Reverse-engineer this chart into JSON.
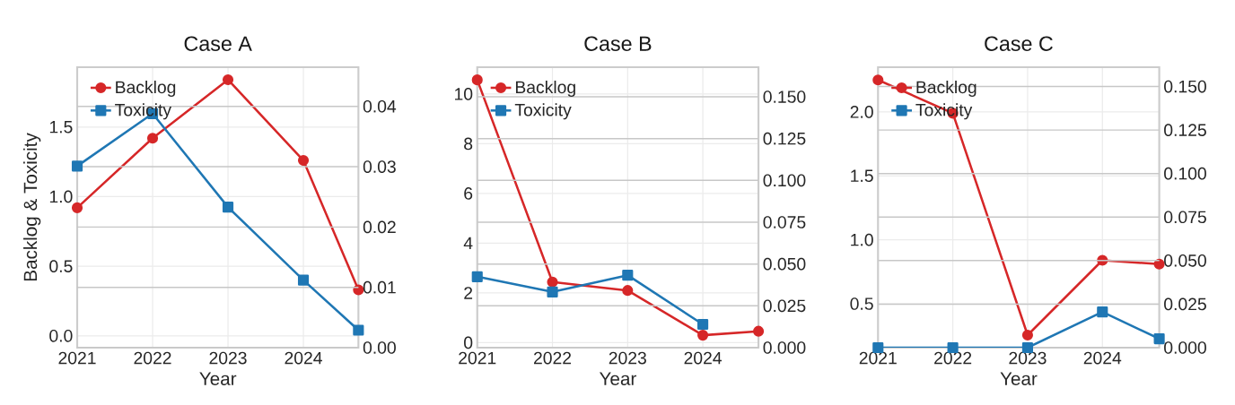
{
  "chart_data": [
    {
      "type": "line",
      "title": "Case A",
      "xlabel": "Year",
      "ylabel": "Backlog & Toxicity",
      "xlim": [
        2021,
        2024.73
      ],
      "xticks": [
        2021,
        2022,
        2023,
        2024
      ],
      "ylim": [
        -0.085,
        1.93
      ],
      "yticks": [
        {
          "value": 0,
          "label": "0.0"
        },
        0.5,
        {
          "value": 1,
          "label": "1.0"
        },
        1.5
      ],
      "y2lim": [
        0,
        0.0465
      ],
      "y2ticks": [
        {
          "value": 0,
          "label": "0.00"
        },
        0.01,
        0.02,
        0.03,
        0.04
      ],
      "grid": true,
      "legend": "top left",
      "series": [
        {
          "name": "Backlog",
          "color": "#d62728",
          "marker": "circle",
          "axis": "y",
          "x": [
            2021,
            2022,
            2023,
            2024,
            2024.73
          ],
          "values": [
            0.92,
            1.42,
            1.84,
            1.26,
            0.33
          ]
        },
        {
          "name": "Toxicity",
          "color": "#1f77b4",
          "marker": "square",
          "axis": "y2",
          "x": [
            2021,
            2022,
            2023,
            2024,
            2024.73
          ],
          "values": [
            0.0301,
            0.0388,
            0.0233,
            0.0112,
            0.0029
          ]
        }
      ]
    },
    {
      "type": "line",
      "title": "Case B",
      "xlabel": "Year",
      "xlim": [
        2021,
        2024.74
      ],
      "xticks": [
        2021,
        2022,
        2023,
        2024
      ],
      "ylim": [
        -0.2,
        11.08
      ],
      "yticks": [
        0,
        2,
        4,
        6,
        8,
        10
      ],
      "y2lim": [
        0,
        0.1677
      ],
      "y2ticks": [
        {
          "value": 0,
          "label": "0.000"
        },
        0.025,
        {
          "value": 0.05,
          "label": "0.050"
        },
        0.075,
        {
          "value": 0.1,
          "label": "0.100"
        },
        0.125,
        {
          "value": 0.15,
          "label": "0.150"
        }
      ],
      "grid": true,
      "legend": "top left",
      "series": [
        {
          "name": "Backlog",
          "color": "#d62728",
          "marker": "circle",
          "axis": "y",
          "x": [
            2021,
            2022,
            2023,
            2024,
            2024.74
          ],
          "values": [
            10.57,
            2.44,
            2.1,
            0.3,
            0.46
          ]
        },
        {
          "name": "Toxicity",
          "color": "#1f77b4",
          "marker": "square",
          "axis": "y2",
          "x": [
            2021,
            2022,
            2023,
            2024
          ],
          "values": [
            0.0424,
            0.0333,
            0.0433,
            0.0139
          ]
        }
      ]
    },
    {
      "type": "line",
      "title": "Case C",
      "xlabel": "Year",
      "xlim": [
        2021,
        2024.76
      ],
      "xticks": [
        2021,
        2022,
        2023,
        2024
      ],
      "ylim": [
        0.157,
        2.35
      ],
      "yticks": [
        0.5,
        {
          "value": 1,
          "label": "1.0"
        },
        1.5,
        {
          "value": 2,
          "label": "2.0"
        }
      ],
      "y2lim": [
        0,
        0.1611
      ],
      "y2ticks": [
        {
          "value": 0,
          "label": "0.000"
        },
        0.025,
        {
          "value": 0.05,
          "label": "0.050"
        },
        0.075,
        {
          "value": 0.1,
          "label": "0.100"
        },
        0.125,
        {
          "value": 0.15,
          "label": "0.150"
        }
      ],
      "grid": true,
      "legend": "top left",
      "series": [
        {
          "name": "Backlog",
          "color": "#d62728",
          "marker": "circle",
          "axis": "y",
          "x": [
            2021,
            2022,
            2023,
            2024,
            2024.76
          ],
          "values": [
            2.25,
            1.99,
            0.255,
            0.84,
            0.81
          ]
        },
        {
          "name": "Toxicity",
          "color": "#1f77b4",
          "marker": "square",
          "axis": "y2",
          "x": [
            2021,
            2022,
            2023,
            2024,
            2024.76
          ],
          "values": [
            0,
            0,
            0,
            0.0205,
            0.0051
          ]
        }
      ]
    }
  ]
}
